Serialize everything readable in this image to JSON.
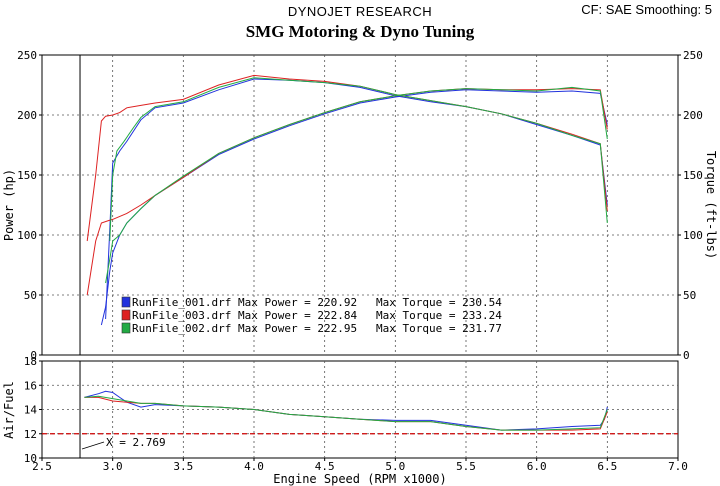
{
  "header": {
    "title": "DYNOJET RESEARCH",
    "settings": "CF: SAE  Smoothing: 5",
    "subtitle": "SMG Motoring & Dyno Tuning"
  },
  "chart_data": [
    {
      "type": "line",
      "xlabel": "Engine Speed (RPM x1000)",
      "ylabel": "Power (hp)",
      "y2label": "Torque (ft-lbs)",
      "xlim": [
        2.5,
        7.0
      ],
      "ylim": [
        0,
        250
      ],
      "y2lim": [
        0,
        250
      ],
      "grid": true,
      "legend_position": "bottom-left",
      "y_ticks": [
        "0",
        "50",
        "100",
        "150",
        "200",
        "250"
      ],
      "y2_ticks": [
        "0",
        "50",
        "100",
        "150",
        "200",
        "250"
      ],
      "legend": [
        {
          "label": "RunFile_001.drf Max Power = 220.92",
          "torque_label": "Max Torque = 230.54",
          "color": "#2233dd"
        },
        {
          "label": "RunFile_003.drf Max Power = 222.84",
          "torque_label": "Max Torque = 233.24",
          "color": "#dd2222"
        },
        {
          "label": "RunFile_002.drf Max Power = 222.95",
          "torque_label": "Max Torque = 231.77",
          "color": "#22aa44"
        }
      ],
      "series": [
        {
          "run": "RunFile_001.drf",
          "measure": "power",
          "color": "#2233dd",
          "x": [
            2.92,
            2.95,
            2.98,
            3.0,
            3.05,
            3.1,
            3.2,
            3.3,
            3.5,
            3.75,
            4.0,
            4.25,
            4.5,
            4.75,
            5.0,
            5.25,
            5.5,
            5.75,
            6.0,
            6.25,
            6.45,
            6.5
          ],
          "y": [
            25,
            40,
            70,
            85,
            100,
            110,
            122,
            133,
            148,
            167,
            180,
            191,
            201,
            210,
            215,
            219,
            221,
            220,
            219,
            220,
            218,
            192
          ]
        },
        {
          "run": "RunFile_001.drf",
          "measure": "torque",
          "color": "#2233dd",
          "x": [
            2.95,
            2.98,
            3.0,
            3.05,
            3.1,
            3.2,
            3.3,
            3.5,
            3.75,
            4.0,
            4.25,
            4.5,
            4.75,
            5.0,
            5.25,
            5.5,
            5.75,
            6.0,
            6.25,
            6.45,
            6.5
          ],
          "y": [
            30,
            105,
            160,
            170,
            178,
            196,
            206,
            210,
            221,
            230,
            229,
            227,
            223,
            216,
            211,
            207,
            201,
            192,
            183,
            175,
            125
          ]
        },
        {
          "run": "RunFile_003.drf",
          "measure": "power",
          "color": "#dd2222",
          "x": [
            2.82,
            2.88,
            2.92,
            2.97,
            3.0,
            3.1,
            3.2,
            3.3,
            3.5,
            3.75,
            4.0,
            4.25,
            4.5,
            4.75,
            5.0,
            5.25,
            5.5,
            5.75,
            6.0,
            6.25,
            6.45,
            6.5
          ],
          "y": [
            50,
            95,
            110,
            112,
            113,
            118,
            125,
            133,
            148,
            168,
            181,
            192,
            202,
            211,
            216,
            220,
            222,
            221,
            221,
            222,
            221,
            188
          ]
        },
        {
          "run": "RunFile_003.drf",
          "measure": "torque",
          "color": "#dd2222",
          "x": [
            2.82,
            2.88,
            2.92,
            2.95,
            3.0,
            3.05,
            3.1,
            3.2,
            3.3,
            3.5,
            3.75,
            4.0,
            4.25,
            4.5,
            4.75,
            5.0,
            5.25,
            5.5,
            5.75,
            6.0,
            6.25,
            6.45,
            6.5
          ],
          "y": [
            95,
            150,
            195,
            199,
            200,
            202,
            206,
            208,
            210,
            213,
            225,
            233,
            230,
            228,
            224,
            217,
            212,
            207,
            201,
            193,
            184,
            176,
            120
          ]
        },
        {
          "run": "RunFile_002.drf",
          "measure": "power",
          "color": "#22aa44",
          "x": [
            2.95,
            2.98,
            3.0,
            3.05,
            3.1,
            3.2,
            3.3,
            3.5,
            3.75,
            4.0,
            4.25,
            4.5,
            4.75,
            5.0,
            5.25,
            5.5,
            5.75,
            6.0,
            6.25,
            6.45,
            6.5
          ],
          "y": [
            60,
            80,
            95,
            100,
            110,
            122,
            133,
            149,
            168,
            181,
            192,
            202,
            211,
            216,
            220,
            222,
            221,
            220,
            223,
            220,
            180
          ]
        },
        {
          "run": "RunFile_002.drf",
          "measure": "torque",
          "color": "#22aa44",
          "x": [
            2.98,
            3.0,
            3.03,
            3.08,
            3.15,
            3.2,
            3.3,
            3.5,
            3.75,
            4.0,
            4.25,
            4.5,
            4.75,
            5.0,
            5.25,
            5.5,
            5.75,
            6.0,
            6.25,
            6.45,
            6.5
          ],
          "y": [
            95,
            150,
            170,
            178,
            190,
            198,
            207,
            211,
            223,
            231,
            229,
            227,
            224,
            217,
            212,
            207,
            201,
            193,
            183,
            176,
            110
          ]
        }
      ]
    },
    {
      "type": "line",
      "xlabel": "Engine Speed (RPM x1000)",
      "ylabel": "Air/Fuel",
      "xlim": [
        2.5,
        7.0
      ],
      "ylim": [
        10,
        18
      ],
      "grid": true,
      "x_ticks": [
        "2.5",
        "3.0",
        "3.5",
        "4.0",
        "4.5",
        "5.0",
        "5.5",
        "6.0",
        "6.5",
        "7.0"
      ],
      "y_ticks": [
        "10",
        "12",
        "14",
        "16",
        "18"
      ],
      "reference_line": {
        "y": 12,
        "color": "#cc0000"
      },
      "cursor": {
        "x": 2.769,
        "label": "X = 2.769"
      },
      "series": [
        {
          "run": "RunFile_001.drf",
          "color": "#2233dd",
          "x": [
            2.8,
            2.9,
            2.95,
            3.0,
            3.05,
            3.1,
            3.2,
            3.3,
            3.5,
            3.75,
            4.0,
            4.25,
            4.5,
            4.75,
            5.0,
            5.25,
            5.5,
            5.75,
            6.0,
            6.25,
            6.45,
            6.48,
            6.5
          ],
          "y": [
            15.0,
            15.3,
            15.5,
            15.4,
            15.0,
            14.6,
            14.2,
            14.4,
            14.3,
            14.2,
            14.0,
            13.6,
            13.4,
            13.2,
            13.1,
            13.1,
            12.7,
            12.3,
            12.4,
            12.6,
            12.7,
            13.2,
            14.2
          ]
        },
        {
          "run": "RunFile_003.drf",
          "color": "#dd2222",
          "x": [
            2.8,
            2.9,
            3.0,
            3.1,
            3.2,
            3.3,
            3.5,
            3.75,
            4.0,
            4.25,
            4.5,
            4.75,
            5.0,
            5.25,
            5.5,
            5.75,
            6.0,
            6.25,
            6.45,
            6.5
          ],
          "y": [
            15.0,
            15.0,
            14.7,
            14.6,
            14.5,
            14.5,
            14.3,
            14.2,
            14.0,
            13.6,
            13.4,
            13.2,
            13.0,
            13.0,
            12.6,
            12.3,
            12.3,
            12.3,
            12.4,
            13.8
          ]
        },
        {
          "run": "RunFile_002.drf",
          "color": "#22aa44",
          "x": [
            2.8,
            2.9,
            3.0,
            3.1,
            3.2,
            3.3,
            3.5,
            3.75,
            4.0,
            4.25,
            4.5,
            4.75,
            5.0,
            5.25,
            5.5,
            5.75,
            6.0,
            6.25,
            6.45,
            6.5
          ],
          "y": [
            15.0,
            15.1,
            14.9,
            14.7,
            14.5,
            14.5,
            14.3,
            14.2,
            14.0,
            13.6,
            13.4,
            13.2,
            13.0,
            13.0,
            12.6,
            12.3,
            12.3,
            12.4,
            12.5,
            14.0
          ]
        }
      ]
    }
  ]
}
